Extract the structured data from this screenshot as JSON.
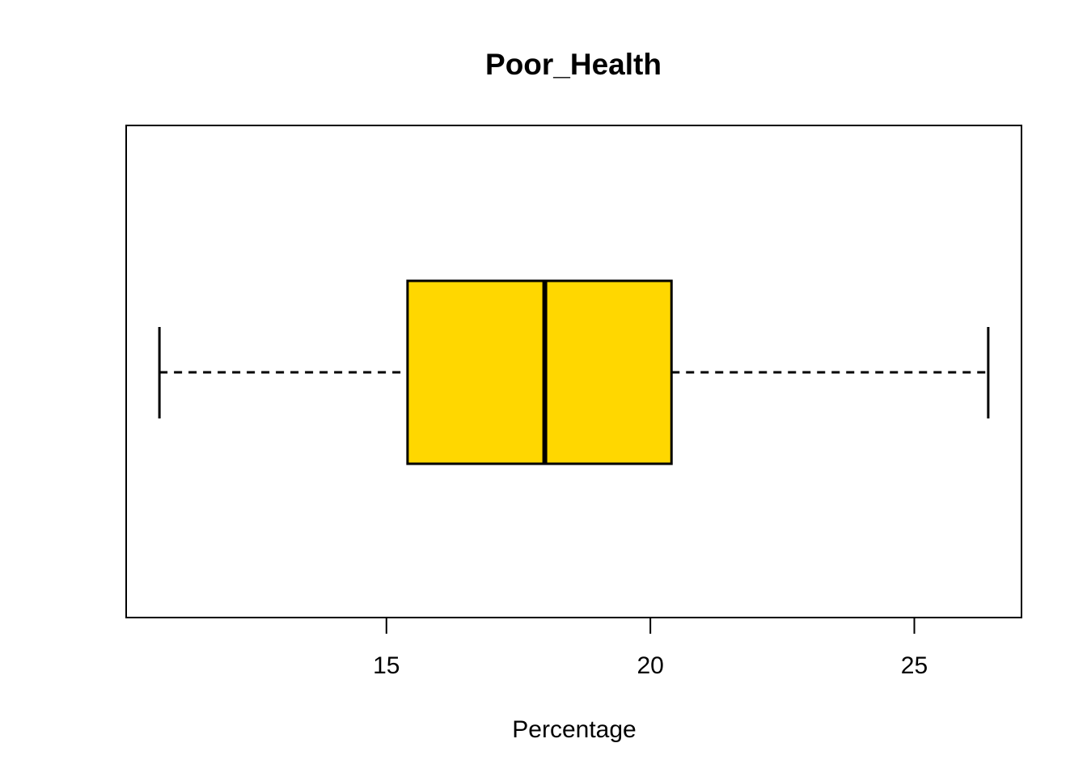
{
  "chart_data": {
    "type": "boxplot",
    "orientation": "horizontal",
    "title": "Poor_Health",
    "xlabel": "Percentage",
    "stats": {
      "min": 10.7,
      "q1": 15.4,
      "median": 18.0,
      "q3": 20.4,
      "max": 26.4
    },
    "x_ticks": [
      "15",
      "20",
      "25"
    ],
    "x_tick_values": [
      15,
      20,
      25
    ],
    "xlim": [
      10.07,
      27.03
    ],
    "grid": false,
    "legend": "none",
    "whisker_style": "dashed",
    "colors": {
      "box_fill": "#FFD700",
      "stroke": "#000000",
      "background": "#FFFFFF"
    }
  }
}
